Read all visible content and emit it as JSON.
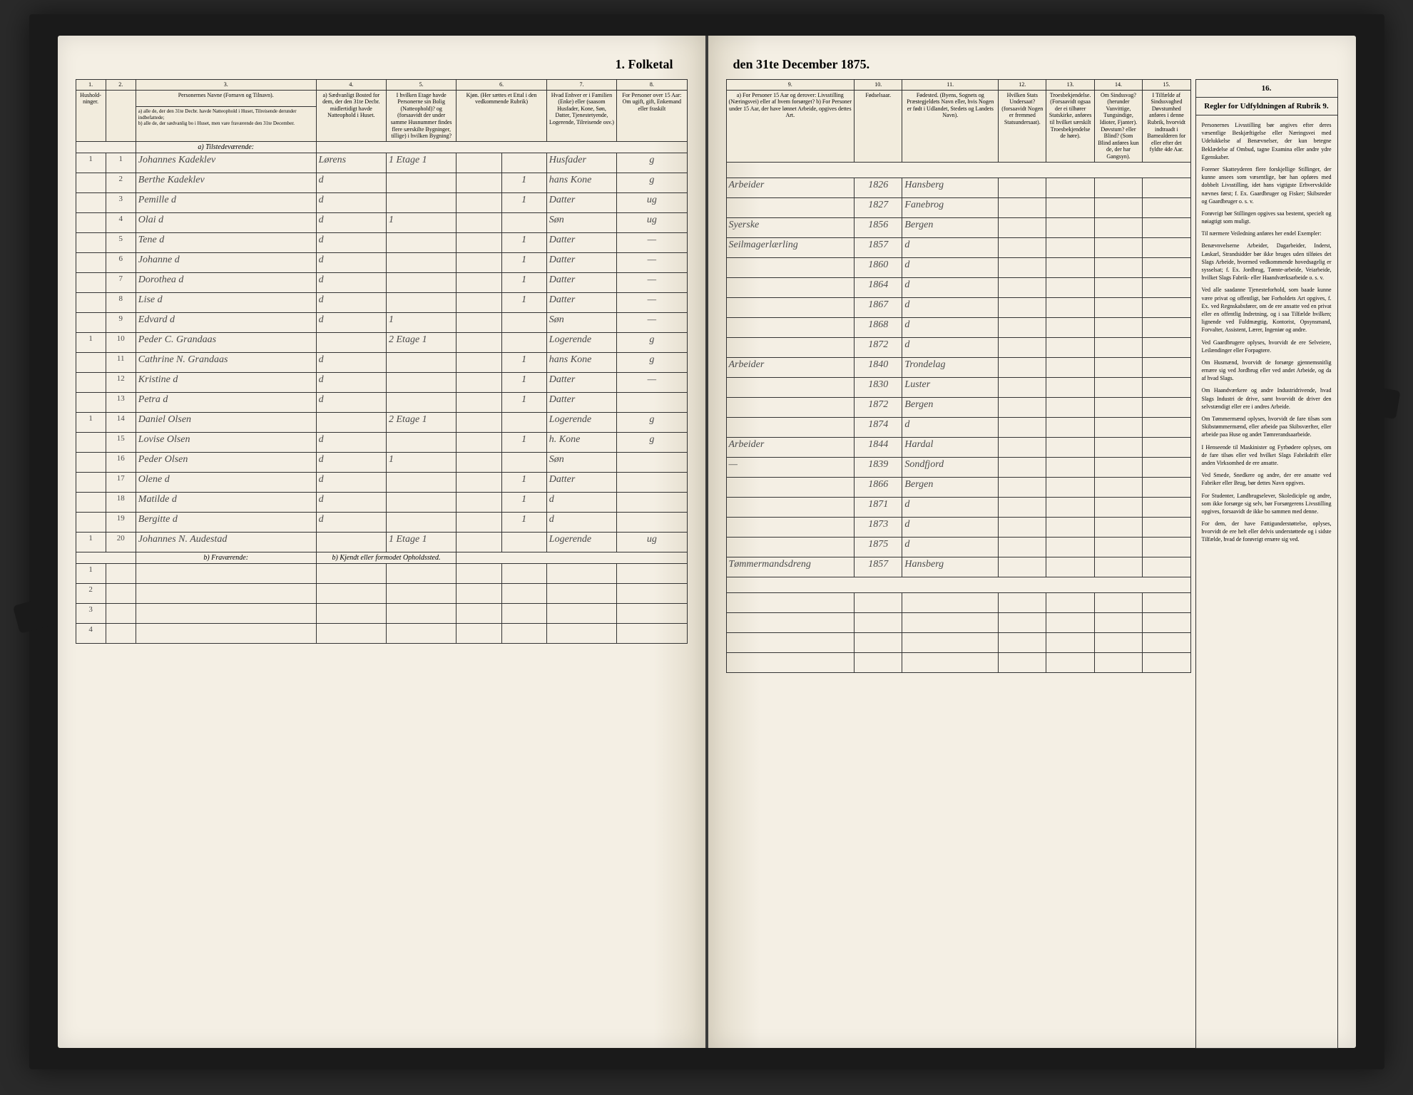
{
  "title_left": "1. Folketal",
  "title_right": "den 31te December 1875.",
  "left_headers": {
    "nums": [
      "1.",
      "2.",
      "3.",
      "4.",
      "5.",
      "6.",
      "7.",
      "8."
    ],
    "labels": [
      "Hushold-ninger.",
      "",
      "Personernes Navne (Fornavn og Tilnavn).",
      "a) Sædvanligt Bosted for dem, der den 31te Decbr. midlertidigt havde Natteophold i Huset.",
      "I hvilken Etage havde Personerne sin Bolig (Natteophold)? og (forsaavidt der under samme Husnummer findes flere særskilte Bygninger, tillige) i hvilken Bygning?",
      "Kjøn. (Her sættes et Ettal i den vedkommende Rubrik)",
      "Hvad Enhver er i Familien (Enke) eller (saasom Husfader, Kone, Søn, Datter, Tjenestetyende, Logerende, Tilreisende osv.)",
      "For Personer over 15 Aar: Om ugift, gift, Enkemand eller fraskilt"
    ],
    "sub_a": "a) alle de, der den 31te Decbr. havde Natteophold i Huset, Tilreisende derunder indbefattede;",
    "sub_b": "b) alle de, der sædvanlig bo i Huset, men vare fraværende den 31te December."
  },
  "right_headers": {
    "nums": [
      "9.",
      "10.",
      "11.",
      "12.",
      "13.",
      "14.",
      "15.",
      "16."
    ],
    "labels": [
      "a) For Personer 15 Aar og derover: Livsstilling (Næringsvei) eller af hvem forsørget? b) For Personer under 15 Aar, der have lønnet Arbeide, opgives dettes Art.",
      "Fødselsaar.",
      "Fødested. (Byens, Sognets og Præstegjeldets Navn eller, hvis Nogen er født i Udlandet, Stedets og Landets Navn).",
      "Hvilken Stats Undersaat? (forsaavidt Nogen er fremmed Statsundersaat).",
      "Troesbekjendelse. (Forsaavidt ogsaa der ei tilhører Statskirke, anføres til hvilket særskilt Troesbekjendelse de høre).",
      "Om Sindssvag? (herunder Vanvittige, Tungsindige, Idioter, Fjanter). Døvstum? eller Blind? (Som Blind anføres kun de, der har Gangsyn).",
      "I Tilfælde af Sindssvaghed Døvstumhed anføres i denne Rubrik, hvorvidt indtraadt i Barnealderen for eller efter det fyldte 4de Aar.",
      ""
    ],
    "col16": "Regler for Udfyldningen af Rubrik 9."
  },
  "section_present": "a) Tilstedeværende:",
  "section_absent": "b) Fraværende:",
  "absent_note": "b) Kjendt eller formodet Opholdssted.",
  "rows": [
    {
      "n": "1",
      "p": "1",
      "name": "Johannes Kadeklev",
      "c4": "Lørens",
      "c5": "1 Etage 1",
      "c6": "",
      "c7": "Husfader",
      "c8": "g",
      "c9": "Arbeider",
      "c10": "1826",
      "c11": "Hansberg"
    },
    {
      "n": "",
      "p": "2",
      "name": "Berthe Kadeklev",
      "c4": "d",
      "c5": "",
      "c6": "1",
      "c7": "hans Kone",
      "c8": "g",
      "c9": "",
      "c10": "1827",
      "c11": "Fanebrog"
    },
    {
      "n": "",
      "p": "3",
      "name": "Pemille    d",
      "c4": "d",
      "c5": "",
      "c6": "1",
      "c7": "Datter",
      "c8": "ug",
      "c9": "Syerske",
      "c10": "1856",
      "c11": "Bergen"
    },
    {
      "n": "",
      "p": "4",
      "name": "Olai       d",
      "c4": "d",
      "c5": "1",
      "c6": "",
      "c7": "Søn",
      "c8": "ug",
      "c9": "Seilmagerlærling",
      "c10": "1857",
      "c11": "d"
    },
    {
      "n": "",
      "p": "5",
      "name": "Tene       d",
      "c4": "d",
      "c5": "",
      "c6": "1",
      "c7": "Datter",
      "c8": "—",
      "c9": "",
      "c10": "1860",
      "c11": "d"
    },
    {
      "n": "",
      "p": "6",
      "name": "Johanne    d",
      "c4": "d",
      "c5": "",
      "c6": "1",
      "c7": "Datter",
      "c8": "—",
      "c9": "",
      "c10": "1864",
      "c11": "d"
    },
    {
      "n": "",
      "p": "7",
      "name": "Dorothea   d",
      "c4": "d",
      "c5": "",
      "c6": "1",
      "c7": "Datter",
      "c8": "—",
      "c9": "",
      "c10": "1867",
      "c11": "d"
    },
    {
      "n": "",
      "p": "8",
      "name": "Lise       d",
      "c4": "d",
      "c5": "",
      "c6": "1",
      "c7": "Datter",
      "c8": "—",
      "c9": "",
      "c10": "1868",
      "c11": "d"
    },
    {
      "n": "",
      "p": "9",
      "name": "Edvard     d",
      "c4": "d",
      "c5": "1",
      "c6": "",
      "c7": "Søn",
      "c8": "—",
      "c9": "",
      "c10": "1872",
      "c11": "d"
    },
    {
      "n": "1",
      "p": "10",
      "name": "Peder C. Grandaas",
      "c4": "",
      "c5": "2 Etage 1",
      "c6": "",
      "c7": "Logerende",
      "c8": "g",
      "c9": "Arbeider",
      "c10": "1840",
      "c11": "Trondelag"
    },
    {
      "n": "",
      "p": "11",
      "name": "Cathrine N. Grandaas",
      "c4": "d",
      "c5": "",
      "c6": "1",
      "c7": "hans Kone",
      "c8": "g",
      "c9": "",
      "c10": "1830",
      "c11": "Luster"
    },
    {
      "n": "",
      "p": "12",
      "name": "Kristine   d",
      "c4": "d",
      "c5": "",
      "c6": "1",
      "c7": "Datter",
      "c8": "—",
      "c9": "",
      "c10": "1872",
      "c11": "Bergen"
    },
    {
      "n": "",
      "p": "13",
      "name": "Petra      d",
      "c4": "d",
      "c5": "",
      "c6": "1",
      "c7": "Datter",
      "c8": "",
      "c9": "",
      "c10": "1874",
      "c11": "d"
    },
    {
      "n": "1",
      "p": "14",
      "name": "Daniel Olsen",
      "c4": "",
      "c5": "2 Etage 1",
      "c6": "",
      "c7": "Logerende",
      "c8": "g",
      "c9": "Arbeider",
      "c10": "1844",
      "c11": "Hardal"
    },
    {
      "n": "",
      "p": "15",
      "name": "Lovise Olsen",
      "c4": "d",
      "c5": "",
      "c6": "1",
      "c7": "h. Kone",
      "c8": "g",
      "c9": "—",
      "c10": "1839",
      "c11": "Sondfjord"
    },
    {
      "n": "",
      "p": "16",
      "name": "Peder Olsen",
      "c4": "d",
      "c5": "1",
      "c6": "",
      "c7": "Søn",
      "c8": "",
      "c9": "",
      "c10": "1866",
      "c11": "Bergen"
    },
    {
      "n": "",
      "p": "17",
      "name": "Olene      d",
      "c4": "d",
      "c5": "",
      "c6": "1",
      "c7": "Datter",
      "c8": "",
      "c9": "",
      "c10": "1871",
      "c11": "d"
    },
    {
      "n": "",
      "p": "18",
      "name": "Matilde    d",
      "c4": "d",
      "c5": "",
      "c6": "1",
      "c7": "d",
      "c8": "",
      "c9": "",
      "c10": "1873",
      "c11": "d"
    },
    {
      "n": "",
      "p": "19",
      "name": "Bergitte   d",
      "c4": "d",
      "c5": "",
      "c6": "1",
      "c7": "d",
      "c8": "",
      "c9": "",
      "c10": "1875",
      "c11": "d"
    },
    {
      "n": "1",
      "p": "20",
      "name": "Johannes N. Audestad",
      "c4": "",
      "c5": "1 Etage 1",
      "c6": "",
      "c7": "Logerende",
      "c8": "ug",
      "c9": "Tømmermandsdreng",
      "c10": "1857",
      "c11": "Hansberg"
    }
  ],
  "rules": [
    "Personernes Livsstilling bør angives efter deres væsentlige Beskjæftigelse eller Næringsvei med Udelukkelse af Benævnelser, der kun betegne Beklædelse af Ombud, tagne Examina eller andre ydre Egenskaber.",
    "Forener Skatteyderen flere forskjellige Stillinger, der kunne ansees som væsentlige, bør han opføres med dobbelt Livsstilling, idet hans vigtigste Erhvervskilde nævnes først; f. Ex. Gaardbruger og Fisker; Skibsreder og Gaardbruger o. s. v.",
    "Forøvrigt bør Stillingen opgives saa bestemt, specielt og nøiagtigt som muligt.",
    "Til nærmere Veiledning anføres her endel Exempler:",
    "Benævnvelserne Arbeider, Dagarbeider, Inderst, Løskarl, Strandsidder bør ikke bruges uden tilføies det Slags Arbeide, hvormed vedkommende hovedsagelig er sysselsat; f. Ex. Jordbrug, Tømte-arbeide, Veiarbeide, hvilket Slags Fabrik- eller Haandværksarbeide o. s. v.",
    "Ved alle saadanne Tjenesteforhold, som baade kunne være privat og offentligt, bør Forholdets Art opgives, f. Ex. ved Regnskabsfører, om de ere ansatte ved en privat eller en offentlig Indretning, og i saa Tilfælde hvilken; lignende ved Fuldmægtig, Kontorist, Opsynsmand, Forvalter, Assistent, Lærer, Ingeniør og andre.",
    "Ved Gaardbrugere oplyses, hvorvidt de ere Selveiere, Leilændinger eller Forpagtere.",
    "Om Husmænd, hvorvidt de forsørge gjennemsnitlig ernære sig ved Jordbrug eller ved andet Arbeide, og da af hvad Slags.",
    "Om Haandværkere og andre Industridrivende, hvad Slags Industri de drive, samt hvorvidt de driver den selvstændigt eller ere i andres Arbeide.",
    "Om Tømmermænd oplyses, hvorvidt de fare tilsøs som Skibstømmermænd, eller arbeide paa Skibsværfter, eller arbeide paa Huse og andet Tømrerandsaarbeide.",
    "I Henseende til Maskinister og Fyrbødere oplyses, om de fare tilsøs eller ved hvilket Slags Fabrikdrift eller anden Virksomhed de ere ansatte.",
    "Ved Smede, Snedkere og andre, der ere ansatte ved Fabriker eller Brug, bør dettes Navn opgives.",
    "For Studenter, Landbrugselever, Skolediciple og andre, som ikke forsørge sig selv, bør Forsørgerens Livsstilling opgives, forsaavidt de ikke bo sammen med denne.",
    "For dem, der have Fattigunderstøttelse, oplyses, hvorvidt de ere helt eller delvis understøttede og i sidste Tilfælde, hvad de forøvrigt ernære sig ved."
  ]
}
